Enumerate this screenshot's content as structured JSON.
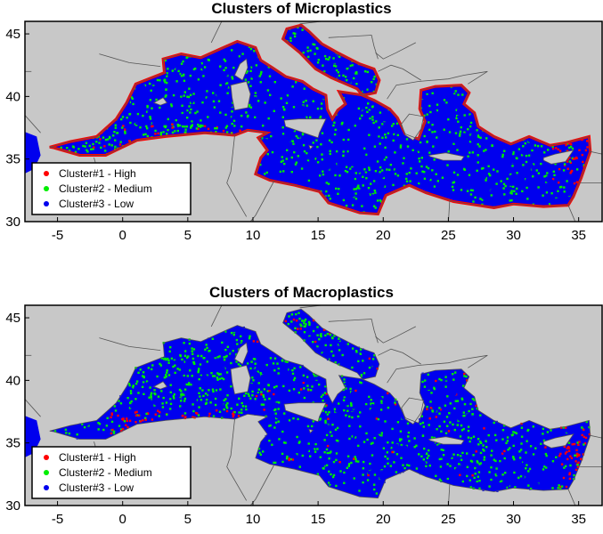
{
  "colors": {
    "land": "#c8c8c8",
    "ocean_frame": "#ffffff",
    "border": "#555555",
    "high": "#ff0000",
    "medium": "#00ee00",
    "low": "#0000ee"
  },
  "axes": {
    "x_ticks": [
      "-5",
      "0",
      "5",
      "10",
      "15",
      "20",
      "25",
      "30",
      "35"
    ],
    "y_ticks": [
      "30",
      "35",
      "40",
      "45"
    ]
  },
  "legend": [
    {
      "label": "Cluster#1 - High",
      "color": "#ff0000"
    },
    {
      "label": "Cluster#2 - Medium",
      "color": "#00ee00"
    },
    {
      "label": "Cluster#3 - Low",
      "color": "#0000ee"
    }
  ],
  "panels": [
    {
      "title": "Clusters of Microplastics"
    },
    {
      "title": "Clusters of Macroplastics"
    }
  ],
  "chart_data": [
    {
      "type": "map",
      "title": "Clusters of Microplastics",
      "xlim": [
        -7.5,
        36.8
      ],
      "ylim": [
        30,
        46
      ],
      "x_ticks": [
        -5,
        0,
        5,
        10,
        15,
        20,
        25,
        30,
        35
      ],
      "y_ticks": [
        30,
        35,
        40,
        45
      ],
      "legend_placement": "bottom-left",
      "series": [
        {
          "name": "Cluster#1 - High"
        },
        {
          "name": "Cluster#2 - Medium"
        },
        {
          "name": "Cluster#3 - Low"
        }
      ]
    },
    {
      "type": "map",
      "title": "Clusters of Macroplastics",
      "xlim": [
        -7.5,
        36.8
      ],
      "ylim": [
        30,
        46
      ],
      "x_ticks": [
        -5,
        0,
        5,
        10,
        15,
        20,
        25,
        30,
        35
      ],
      "y_ticks": [
        30,
        35,
        40,
        45
      ],
      "legend_placement": "bottom-left",
      "series": [
        {
          "name": "Cluster#1 - High"
        },
        {
          "name": "Cluster#2 - Medium"
        },
        {
          "name": "Cluster#3 - Low"
        }
      ]
    }
  ]
}
